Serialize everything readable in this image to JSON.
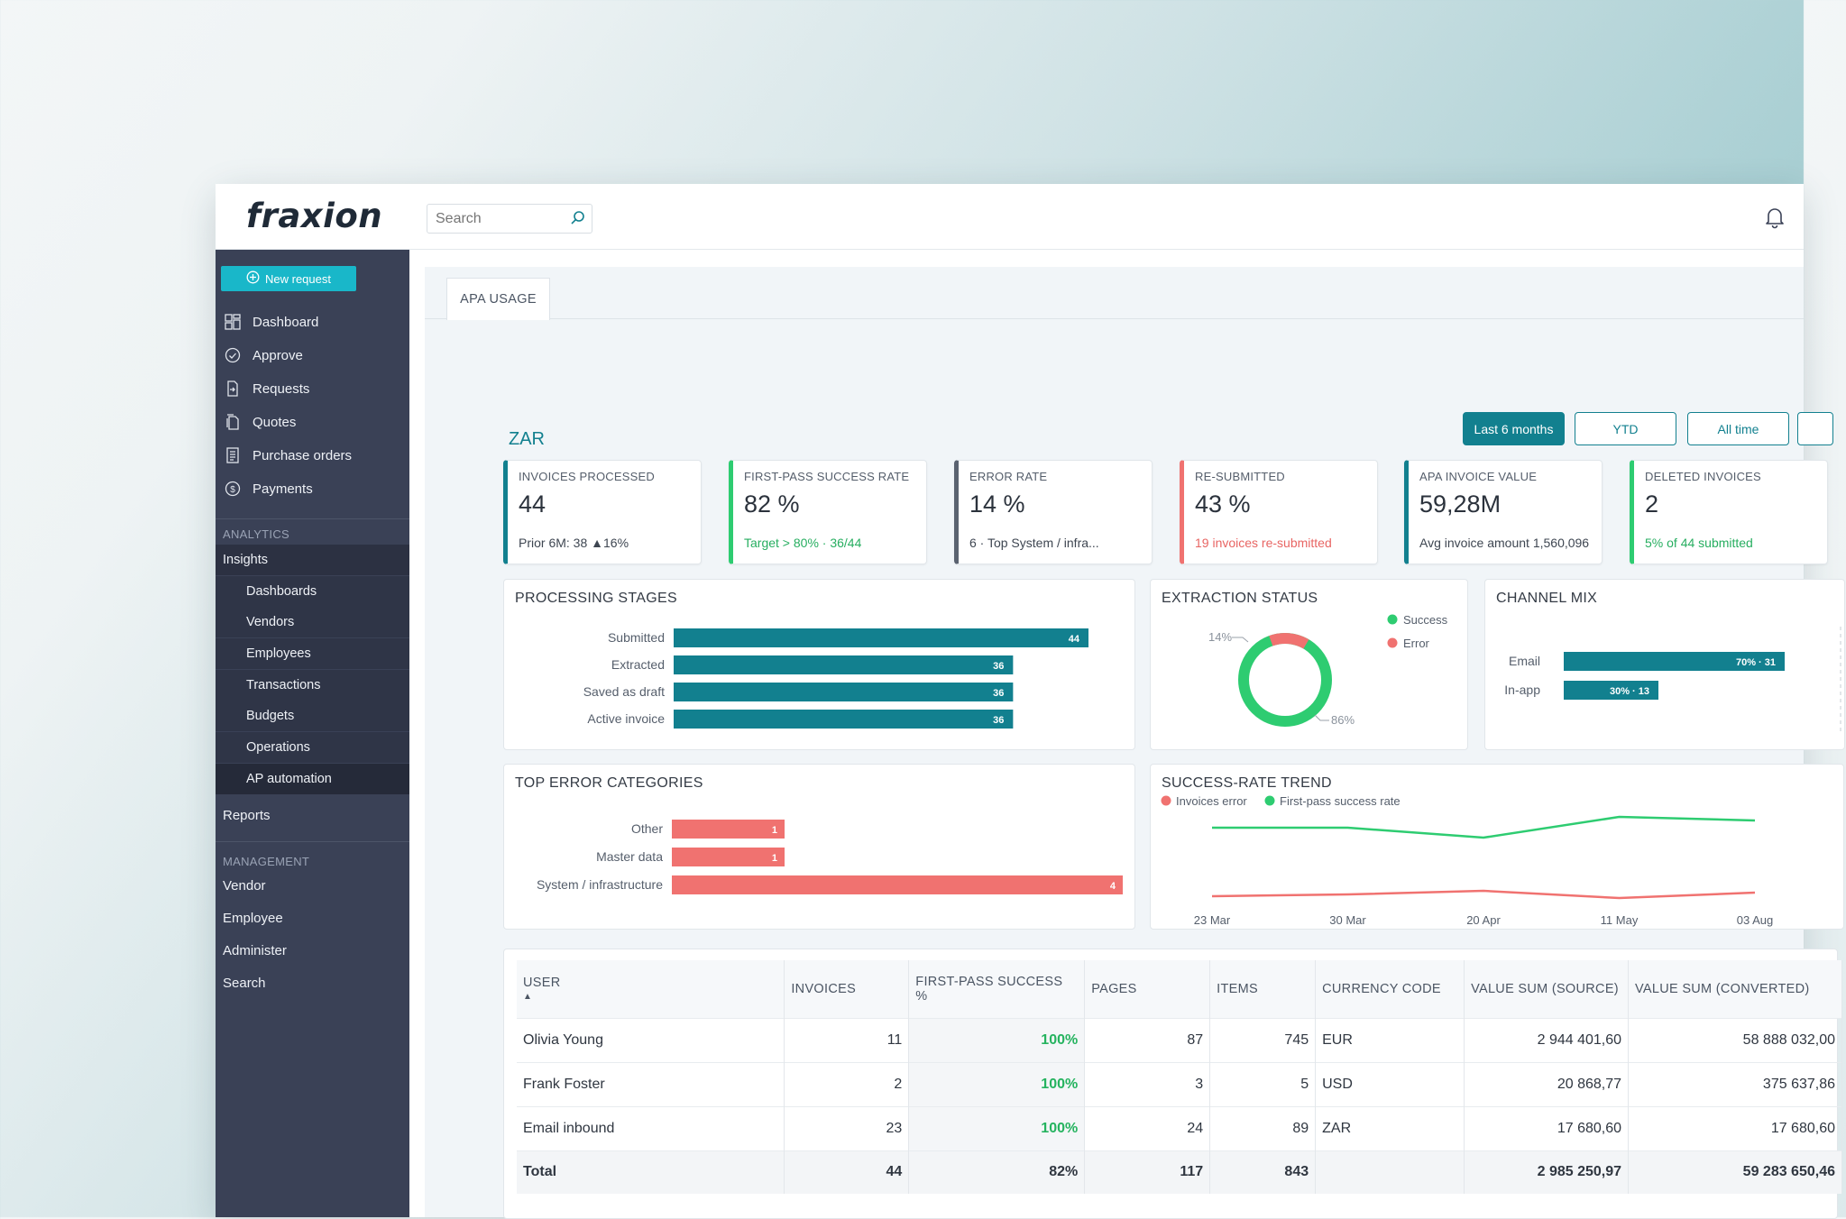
{
  "app": {
    "logo": "fraxion",
    "search_placeholder": "Search"
  },
  "sidebar": {
    "new_request": "New request",
    "items": [
      {
        "label": "Dashboard",
        "icon": "dashboard-icon"
      },
      {
        "label": "Approve",
        "icon": "check-circle-icon"
      },
      {
        "label": "Requests",
        "icon": "document-arrow-icon"
      },
      {
        "label": "Quotes",
        "icon": "documents-icon"
      },
      {
        "label": "Purchase orders",
        "icon": "list-document-icon"
      },
      {
        "label": "Payments",
        "icon": "dollar-circle-icon"
      }
    ],
    "analytics_label": "ANALYTICS",
    "insights": "Insights",
    "insights_sub": [
      "Dashboards",
      "Vendors",
      "Employees",
      "Transactions",
      "Budgets",
      "Operations",
      "AP automation"
    ],
    "reports": "Reports",
    "management_label": "MANAGEMENT",
    "management": [
      "Vendor",
      "Employee",
      "Administer",
      "Search"
    ]
  },
  "main": {
    "tab": "APA USAGE",
    "currency": "ZAR",
    "ranges": [
      "Last 6 months",
      "YTD",
      "All time"
    ],
    "active_range": "Last 6 months"
  },
  "kpis": [
    {
      "label": "INVOICES PROCESSED",
      "value": "44",
      "sub": "Prior 6M: 38 ▲16%"
    },
    {
      "label": "FIRST-PASS SUCCESS RATE",
      "value": "82 %",
      "sub": "Target > 80% · 36/44"
    },
    {
      "label": "ERROR RATE",
      "value": "14 %",
      "sub": "6 · Top System / infra..."
    },
    {
      "label": "RE-SUBMITTED",
      "value": "43 %",
      "sub": "19 invoices re-submitted"
    },
    {
      "label": "APA INVOICE VALUE",
      "value": "59,28M",
      "sub": "Avg invoice amount 1,560,096"
    },
    {
      "label": "DELETED INVOICES",
      "value": "2",
      "sub": "5% of 44 submitted"
    }
  ],
  "panels": {
    "processing": "PROCESSING STAGES",
    "extraction": "EXTRACTION STATUS",
    "channel": "CHANNEL MIX",
    "errors": "TOP ERROR CATEGORIES",
    "trend": "SUCCESS-RATE TREND"
  },
  "colors": {
    "teal": "#12808f",
    "green": "#2ecc71",
    "red": "#f07270",
    "accent": "#19b7c9"
  },
  "chart_data": [
    {
      "type": "bar",
      "title": "PROCESSING STAGES",
      "categories": [
        "Submitted",
        "Extracted",
        "Saved as draft",
        "Active invoice"
      ],
      "values": [
        44,
        36,
        36,
        36
      ],
      "xlim": [
        0,
        44
      ]
    },
    {
      "type": "pie",
      "title": "EXTRACTION STATUS",
      "labels": [
        "Success",
        "Error"
      ],
      "values": [
        86,
        14
      ],
      "slice_labels": [
        "86%",
        "14%"
      ]
    },
    {
      "type": "bar",
      "title": "CHANNEL MIX",
      "categories": [
        "Email",
        "In-app"
      ],
      "values": [
        70,
        30
      ],
      "data_labels": [
        "70% · 31",
        "30% · 13"
      ]
    },
    {
      "type": "bar",
      "title": "TOP ERROR CATEGORIES",
      "categories": [
        "Other",
        "Master data",
        "System / infrastructure"
      ],
      "values": [
        1,
        1,
        4
      ],
      "xlim": [
        0,
        4
      ]
    },
    {
      "type": "line",
      "title": "SUCCESS-RATE TREND",
      "x": [
        "23 Mar",
        "30 Mar",
        "20 Apr",
        "11 May",
        "03 Aug"
      ],
      "series": [
        {
          "name": "Invoices error",
          "values": [
            4,
            6,
            10,
            2,
            8
          ]
        },
        {
          "name": "First-pass success rate",
          "values": [
            80,
            80,
            69,
            92,
            88
          ]
        }
      ],
      "ylim": [
        0,
        100
      ]
    }
  ],
  "table": {
    "headers": [
      "USER",
      "INVOICES",
      "FIRST-PASS SUCCESS %",
      "PAGES",
      "ITEMS",
      "CURRENCY CODE",
      "VALUE SUM (SOURCE)",
      "VALUE SUM (CONVERTED)"
    ],
    "rows": [
      [
        "Olivia Young",
        "11",
        "100%",
        "87",
        "745",
        "EUR",
        "2 944 401,60",
        "58 888 032,00"
      ],
      [
        "Frank Foster",
        "2",
        "100%",
        "3",
        "5",
        "USD",
        "20 868,77",
        "375 637,86"
      ],
      [
        "Email inbound",
        "23",
        "100%",
        "24",
        "89",
        "ZAR",
        "17 680,60",
        "17 680,60"
      ]
    ],
    "total": [
      "Total",
      "44",
      "82%",
      "117",
      "843",
      "",
      "2 985 250,97",
      "59 283 650,46"
    ]
  }
}
